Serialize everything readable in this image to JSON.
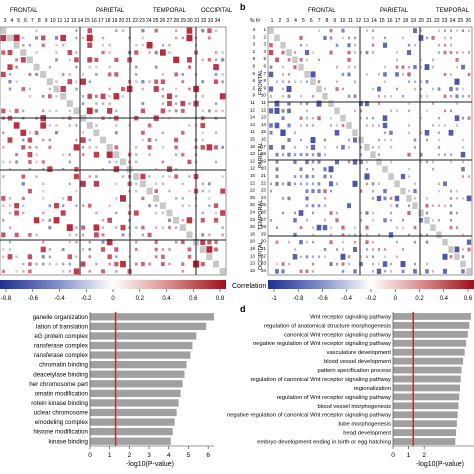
{
  "panel_b_label": "b",
  "panel_d_label": "d",
  "panel_b_corner_label": "% h²",
  "regions": {
    "a": [
      "FRONTAL",
      "PARIETAL",
      "TEMPORAL",
      "OCCIPITAL"
    ],
    "b": [
      "FRONTAL",
      "PARIETAL",
      "TEMPORAL"
    ],
    "b_side": [
      "FRONTAL",
      "PARIETAL",
      "TEMPORAL",
      "OCCIPITAL"
    ]
  },
  "panel_a_column_numbers": [
    "3",
    "4",
    "5",
    "6",
    "7",
    "8",
    "9",
    "10",
    "11",
    "12",
    "13",
    "14",
    "15",
    "16",
    "17",
    "18",
    "19",
    "20",
    "21",
    "22",
    "23",
    "24",
    "25",
    "26",
    "27",
    "28",
    "29",
    "30",
    "31",
    "32",
    "33",
    "34"
  ],
  "panel_b_column_numbers": [
    "1",
    "2",
    "3",
    "4",
    "5",
    "6",
    "7",
    "8",
    "9",
    "10",
    "11",
    "12",
    "13",
    "14",
    "15",
    "16",
    "17",
    "18",
    "19",
    "20",
    "21",
    "22",
    "23",
    "24",
    "25",
    "26"
  ],
  "panel_b_row_numbers": [
    "1",
    "2",
    "3",
    "4",
    "5",
    "6",
    "7",
    "8",
    "9",
    "10",
    "11",
    "12",
    "13",
    "14",
    "15",
    "16",
    "17",
    "18",
    "19",
    "20",
    "21",
    "22",
    "23",
    "24",
    "25",
    "26",
    "27",
    "28",
    "29",
    "30",
    "31",
    "32",
    "33",
    "34"
  ],
  "panel_b_left_values": [
    "4",
    "3",
    "3",
    "2",
    "8",
    "9",
    "6",
    "6",
    "2",
    "9",
    "11",
    "12",
    "14",
    "14",
    "11",
    "15",
    "18",
    "13",
    "12",
    "12",
    "16",
    "22",
    "22",
    "25",
    "26",
    "24",
    "23",
    "20",
    "18",
    "20",
    "19",
    "13",
    "13",
    "13"
  ],
  "colorbars": {
    "title": "Correlation",
    "left_ticks": [
      "-0.8",
      "-0.6",
      "-0.4",
      "-0.2",
      "0",
      "0.2",
      "0.4",
      "0.6",
      "0.8"
    ],
    "right_ticks": [
      "-1",
      "-0.8",
      "-0.6",
      "-0.4",
      "-0.2",
      "0",
      "0.2",
      "0.4",
      "0.6"
    ]
  },
  "chart_data": [
    {
      "type": "bar",
      "panel": "c",
      "orientation": "horizontal",
      "categories": [
        "ganelle organization",
        "lation of translation",
        "eG protein complex",
        "ransferase complex",
        "ransferase complex",
        "chromatin binding",
        "deacetylase binding",
        "her chromosome part",
        "omatin modification",
        "rotein kinase binding",
        "uclear chromosome",
        "emodeling complex",
        "histone modification",
        "kinase binding"
      ],
      "values": [
        6.3,
        5.9,
        5.4,
        5.2,
        5.1,
        4.9,
        4.8,
        4.7,
        4.6,
        4.5,
        4.4,
        4.3,
        4.2,
        4.1
      ],
      "xlim": [
        0,
        6.5
      ],
      "xticks": [
        "0",
        "1",
        "2",
        "3",
        "4",
        "5",
        "6"
      ],
      "threshold": 1.3,
      "xlabel": "-log10(P-value)"
    },
    {
      "type": "bar",
      "panel": "d",
      "orientation": "horizontal",
      "categories": [
        "Wnt receptor signaling pathway",
        "regulation of anatomical structure morphogenesis",
        "canonical Wnt receptor signaling pathway",
        "negative regulation of Wnt receptor signaling pathway",
        "vasculature development",
        "blood vessel development",
        "pattern specification process",
        "regulation of canonical Wnt receptor signaling pathway",
        "regionalization",
        "regulation of Wnt receptor signaling pathway",
        "blood vessel morphogenesis",
        "negative regulation of canonical Wnt receptor signaling pathway",
        "tube morphogenesis",
        "head development",
        "embryo development ending in birth or egg hatching"
      ],
      "values": [
        5.0,
        4.9,
        4.8,
        4.7,
        4.6,
        4.5,
        4.4,
        4.35,
        4.3,
        4.25,
        4.2,
        4.15,
        4.1,
        4.05,
        4.0
      ],
      "xlim": [
        0,
        5.2
      ],
      "xticks": [
        "0",
        "1",
        "2"
      ],
      "threshold": 1.3,
      "xlabel": "-log10(P-value)"
    }
  ],
  "colors": {
    "positive": "#b2182b",
    "negative": "#2f3d9c",
    "diagonal": "#c8c8c8",
    "bar": "#a0a0a0",
    "threshold": "#e2231a"
  }
}
